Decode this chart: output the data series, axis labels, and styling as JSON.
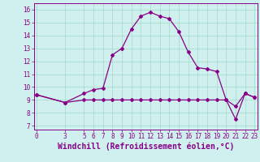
{
  "xlabel": "Windchill (Refroidissement éolien,°C)",
  "background_color": "#cff0ee",
  "grid_color": "#aaddcc",
  "line_color": "#880088",
  "x_line1": [
    0,
    3,
    5,
    6,
    7,
    8,
    9,
    10,
    11,
    12,
    13,
    14,
    15,
    16,
    17,
    18,
    19,
    20,
    21,
    22,
    23
  ],
  "y_line1": [
    9.4,
    8.8,
    9.5,
    9.8,
    9.9,
    12.5,
    13.0,
    14.5,
    15.5,
    15.8,
    15.5,
    15.3,
    14.3,
    12.7,
    11.5,
    11.4,
    11.2,
    9.0,
    7.5,
    9.5,
    9.2
  ],
  "x_line2": [
    0,
    3,
    5,
    6,
    7,
    8,
    9,
    10,
    11,
    12,
    13,
    14,
    15,
    16,
    17,
    18,
    19,
    20,
    21,
    22,
    23
  ],
  "y_line2": [
    9.4,
    8.8,
    9.0,
    9.0,
    9.0,
    9.0,
    9.0,
    9.0,
    9.0,
    9.0,
    9.0,
    9.0,
    9.0,
    9.0,
    9.0,
    9.0,
    9.0,
    9.0,
    8.5,
    9.5,
    9.2
  ],
  "xlim": [
    -0.3,
    23.3
  ],
  "ylim": [
    6.7,
    16.5
  ],
  "xticks": [
    0,
    3,
    5,
    6,
    7,
    8,
    9,
    10,
    11,
    12,
    13,
    14,
    15,
    16,
    17,
    18,
    19,
    20,
    21,
    22,
    23
  ],
  "yticks": [
    7,
    8,
    9,
    10,
    11,
    12,
    13,
    14,
    15,
    16
  ],
  "tick_fontsize": 5.5,
  "xlabel_fontsize": 7.0
}
